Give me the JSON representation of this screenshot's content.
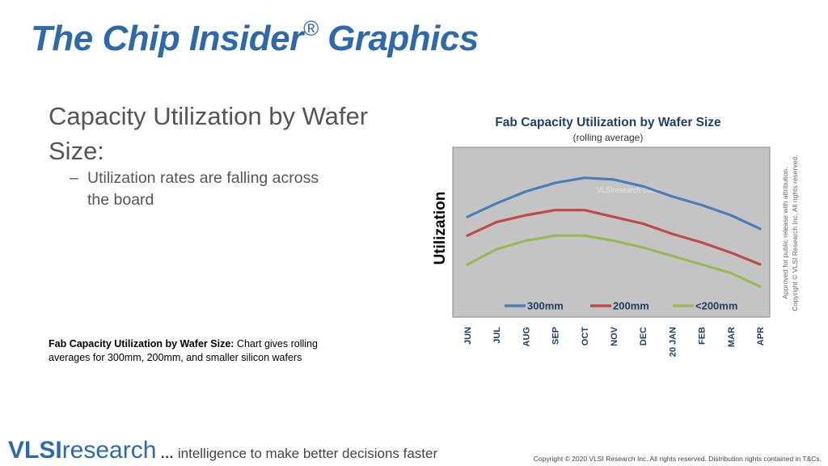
{
  "slide": {
    "title_main": "The Chip Insider",
    "title_reg": "®",
    "title_end": " Graphics",
    "heading": "Capacity Utilization by Wafer Size:",
    "bullet_dash": "–",
    "bullet_line1": "Utilization rates are falling across",
    "bullet_line2": "the board",
    "caption_bold": "Fab Capacity Utilization by Wafer Size:",
    "caption_text": " Chart gives rolling averages for 300mm, 200mm, and smaller silicon wafers",
    "approval_line1": "Approved  for public release with attribution.",
    "approval_line2": "Copyright © VLSI Research Inc.  All rights reserved.",
    "footer_vlsi": "VLSI",
    "footer_research": "research",
    "footer_dots": " … ",
    "footer_tagline": "intelligence to make better decisions faster",
    "copyright": "Copyright © 2020 VLSI Research Inc. All rights reserved. Distribution rights contained in T&Cs."
  },
  "chart_data": {
    "type": "line",
    "title": "Fab Capacity Utilization by Wafer Size",
    "subtitle": "(rolling average)",
    "ylabel": "Utilization",
    "xlabel": "",
    "watermark": "VLSIresearch Data",
    "categories": [
      "JUN",
      "JUL",
      "AUG",
      "SEP",
      "OCT",
      "NOV",
      "DEC",
      "20 JAN",
      "FEB",
      "MAR",
      "APR"
    ],
    "ylim": [
      0,
      100
    ],
    "grid": false,
    "legend_position": "bottom-inside",
    "series": [
      {
        "name": "300mm",
        "color": "#4a7ebb",
        "values": [
          59,
          67,
          74,
          79,
          82,
          81,
          77,
          71,
          66,
          60,
          52
        ]
      },
      {
        "name": "200mm",
        "color": "#be4b48",
        "values": [
          48,
          56,
          60,
          63,
          63,
          59,
          55,
          49,
          44,
          38,
          31
        ]
      },
      {
        "name": "<200mm",
        "color": "#98b954",
        "values": [
          31,
          40,
          45,
          48,
          48,
          45,
          41,
          36,
          31,
          26,
          18
        ]
      }
    ]
  }
}
